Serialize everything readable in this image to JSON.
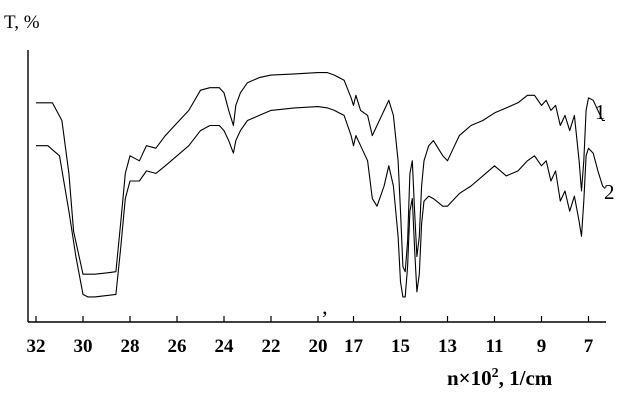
{
  "chart_data": {
    "type": "line",
    "ylabel": "T, %",
    "xlabel": "n×10",
    "xlabel_sup": "2",
    "xlabel_tail": ", 1/cm",
    "x_axis_break_mark": "’",
    "x_axis_note": "broken axis: scale changes between 19 and 17",
    "xticks": [
      "32",
      "30",
      "28",
      "26",
      "24",
      "22",
      "20",
      "17",
      "15",
      "13",
      "11",
      "9",
      "7"
    ],
    "grid": false,
    "y_range": [
      0,
      100
    ],
    "series": [
      {
        "name": "1",
        "points": [
          [
            32.0,
            83
          ],
          [
            31.3,
            83
          ],
          [
            30.9,
            76
          ],
          [
            30.6,
            55
          ],
          [
            30.4,
            32
          ],
          [
            30.0,
            15
          ],
          [
            29.8,
            15
          ],
          [
            29.5,
            15
          ],
          [
            29.0,
            15.5
          ],
          [
            28.6,
            16
          ],
          [
            28.4,
            35
          ],
          [
            28.2,
            55
          ],
          [
            28.0,
            62
          ],
          [
            27.6,
            60
          ],
          [
            27.3,
            66
          ],
          [
            26.9,
            65
          ],
          [
            26.5,
            70
          ],
          [
            26.0,
            75
          ],
          [
            25.5,
            80
          ],
          [
            25.0,
            88
          ],
          [
            24.6,
            89
          ],
          [
            24.2,
            89
          ],
          [
            24.0,
            87
          ],
          [
            23.8,
            80
          ],
          [
            23.6,
            74
          ],
          [
            23.5,
            82
          ],
          [
            23.3,
            87
          ],
          [
            23.0,
            91
          ],
          [
            22.5,
            93
          ],
          [
            22.0,
            94
          ],
          [
            21.0,
            94.5
          ],
          [
            20.0,
            95
          ],
          [
            19.6,
            95
          ],
          [
            19.3,
            94
          ],
          [
            19.1,
            93
          ],
          [
            17.4,
            92
          ],
          [
            17.1,
            85
          ],
          [
            17.0,
            82
          ],
          [
            16.9,
            86
          ],
          [
            16.7,
            80
          ],
          [
            16.4,
            78
          ],
          [
            16.2,
            70
          ],
          [
            16.0,
            74
          ],
          [
            15.7,
            80
          ],
          [
            15.5,
            84
          ],
          [
            15.3,
            78
          ],
          [
            15.1,
            60
          ],
          [
            15.0,
            40
          ],
          [
            14.9,
            18
          ],
          [
            14.8,
            16
          ],
          [
            14.7,
            28
          ],
          [
            14.6,
            55
          ],
          [
            14.5,
            60
          ],
          [
            14.4,
            40
          ],
          [
            14.3,
            22
          ],
          [
            14.2,
            30
          ],
          [
            14.1,
            50
          ],
          [
            14.0,
            60
          ],
          [
            13.8,
            66
          ],
          [
            13.6,
            68
          ],
          [
            13.2,
            62
          ],
          [
            13.0,
            60
          ],
          [
            12.8,
            64
          ],
          [
            12.5,
            70
          ],
          [
            12.0,
            74
          ],
          [
            11.5,
            76
          ],
          [
            11.0,
            79
          ],
          [
            10.5,
            81
          ],
          [
            10.0,
            83
          ],
          [
            9.6,
            86
          ],
          [
            9.3,
            86
          ],
          [
            9.0,
            82
          ],
          [
            8.8,
            84
          ],
          [
            8.6,
            80
          ],
          [
            8.4,
            82
          ],
          [
            8.2,
            74
          ],
          [
            8.0,
            78
          ],
          [
            7.8,
            72
          ],
          [
            7.6,
            78
          ],
          [
            7.4,
            60
          ],
          [
            7.3,
            48
          ],
          [
            7.2,
            60
          ],
          [
            7.1,
            80
          ],
          [
            7.0,
            85
          ],
          [
            6.8,
            84
          ],
          [
            6.6,
            80
          ],
          [
            6.4,
            76
          ],
          [
            6.3,
            76
          ]
        ]
      },
      {
        "name": "2",
        "points": [
          [
            32.0,
            66
          ],
          [
            31.5,
            66
          ],
          [
            31.0,
            62
          ],
          [
            30.6,
            40
          ],
          [
            30.3,
            22
          ],
          [
            30.0,
            7
          ],
          [
            29.8,
            6
          ],
          [
            29.5,
            6
          ],
          [
            29.0,
            6.5
          ],
          [
            28.6,
            7
          ],
          [
            28.4,
            25
          ],
          [
            28.2,
            45
          ],
          [
            28.0,
            52
          ],
          [
            27.6,
            52
          ],
          [
            27.3,
            56
          ],
          [
            26.9,
            55
          ],
          [
            26.5,
            58
          ],
          [
            26.0,
            62
          ],
          [
            25.5,
            66
          ],
          [
            25.0,
            72
          ],
          [
            24.6,
            74
          ],
          [
            24.2,
            74
          ],
          [
            24.0,
            72
          ],
          [
            23.8,
            68
          ],
          [
            23.6,
            63
          ],
          [
            23.5,
            68
          ],
          [
            23.3,
            72
          ],
          [
            23.0,
            76
          ],
          [
            22.5,
            78
          ],
          [
            22.0,
            80
          ],
          [
            21.0,
            81
          ],
          [
            20.0,
            81.5
          ],
          [
            19.6,
            81
          ],
          [
            19.3,
            80
          ],
          [
            19.1,
            79
          ],
          [
            17.4,
            78
          ],
          [
            17.1,
            70
          ],
          [
            17.0,
            66
          ],
          [
            16.9,
            70
          ],
          [
            16.7,
            66
          ],
          [
            16.4,
            60
          ],
          [
            16.2,
            45
          ],
          [
            16.0,
            42
          ],
          [
            15.7,
            50
          ],
          [
            15.5,
            58
          ],
          [
            15.3,
            50
          ],
          [
            15.1,
            30
          ],
          [
            15.0,
            12
          ],
          [
            14.9,
            6
          ],
          [
            14.8,
            6
          ],
          [
            14.7,
            18
          ],
          [
            14.6,
            40
          ],
          [
            14.5,
            45
          ],
          [
            14.4,
            25
          ],
          [
            14.3,
            8
          ],
          [
            14.2,
            15
          ],
          [
            14.1,
            35
          ],
          [
            14.0,
            44
          ],
          [
            13.8,
            46
          ],
          [
            13.6,
            45
          ],
          [
            13.2,
            42
          ],
          [
            13.0,
            42
          ],
          [
            12.8,
            44
          ],
          [
            12.5,
            47
          ],
          [
            12.0,
            50
          ],
          [
            11.5,
            54
          ],
          [
            11.0,
            58
          ],
          [
            10.5,
            54
          ],
          [
            10.0,
            56
          ],
          [
            9.6,
            60
          ],
          [
            9.3,
            62
          ],
          [
            9.0,
            58
          ],
          [
            8.8,
            60
          ],
          [
            8.6,
            52
          ],
          [
            8.4,
            56
          ],
          [
            8.2,
            44
          ],
          [
            8.0,
            48
          ],
          [
            7.8,
            40
          ],
          [
            7.6,
            46
          ],
          [
            7.4,
            36
          ],
          [
            7.3,
            30
          ],
          [
            7.2,
            44
          ],
          [
            7.1,
            62
          ],
          [
            7.0,
            65
          ],
          [
            6.8,
            63
          ],
          [
            6.6,
            56
          ],
          [
            6.4,
            50
          ],
          [
            6.3,
            49
          ]
        ]
      }
    ]
  }
}
